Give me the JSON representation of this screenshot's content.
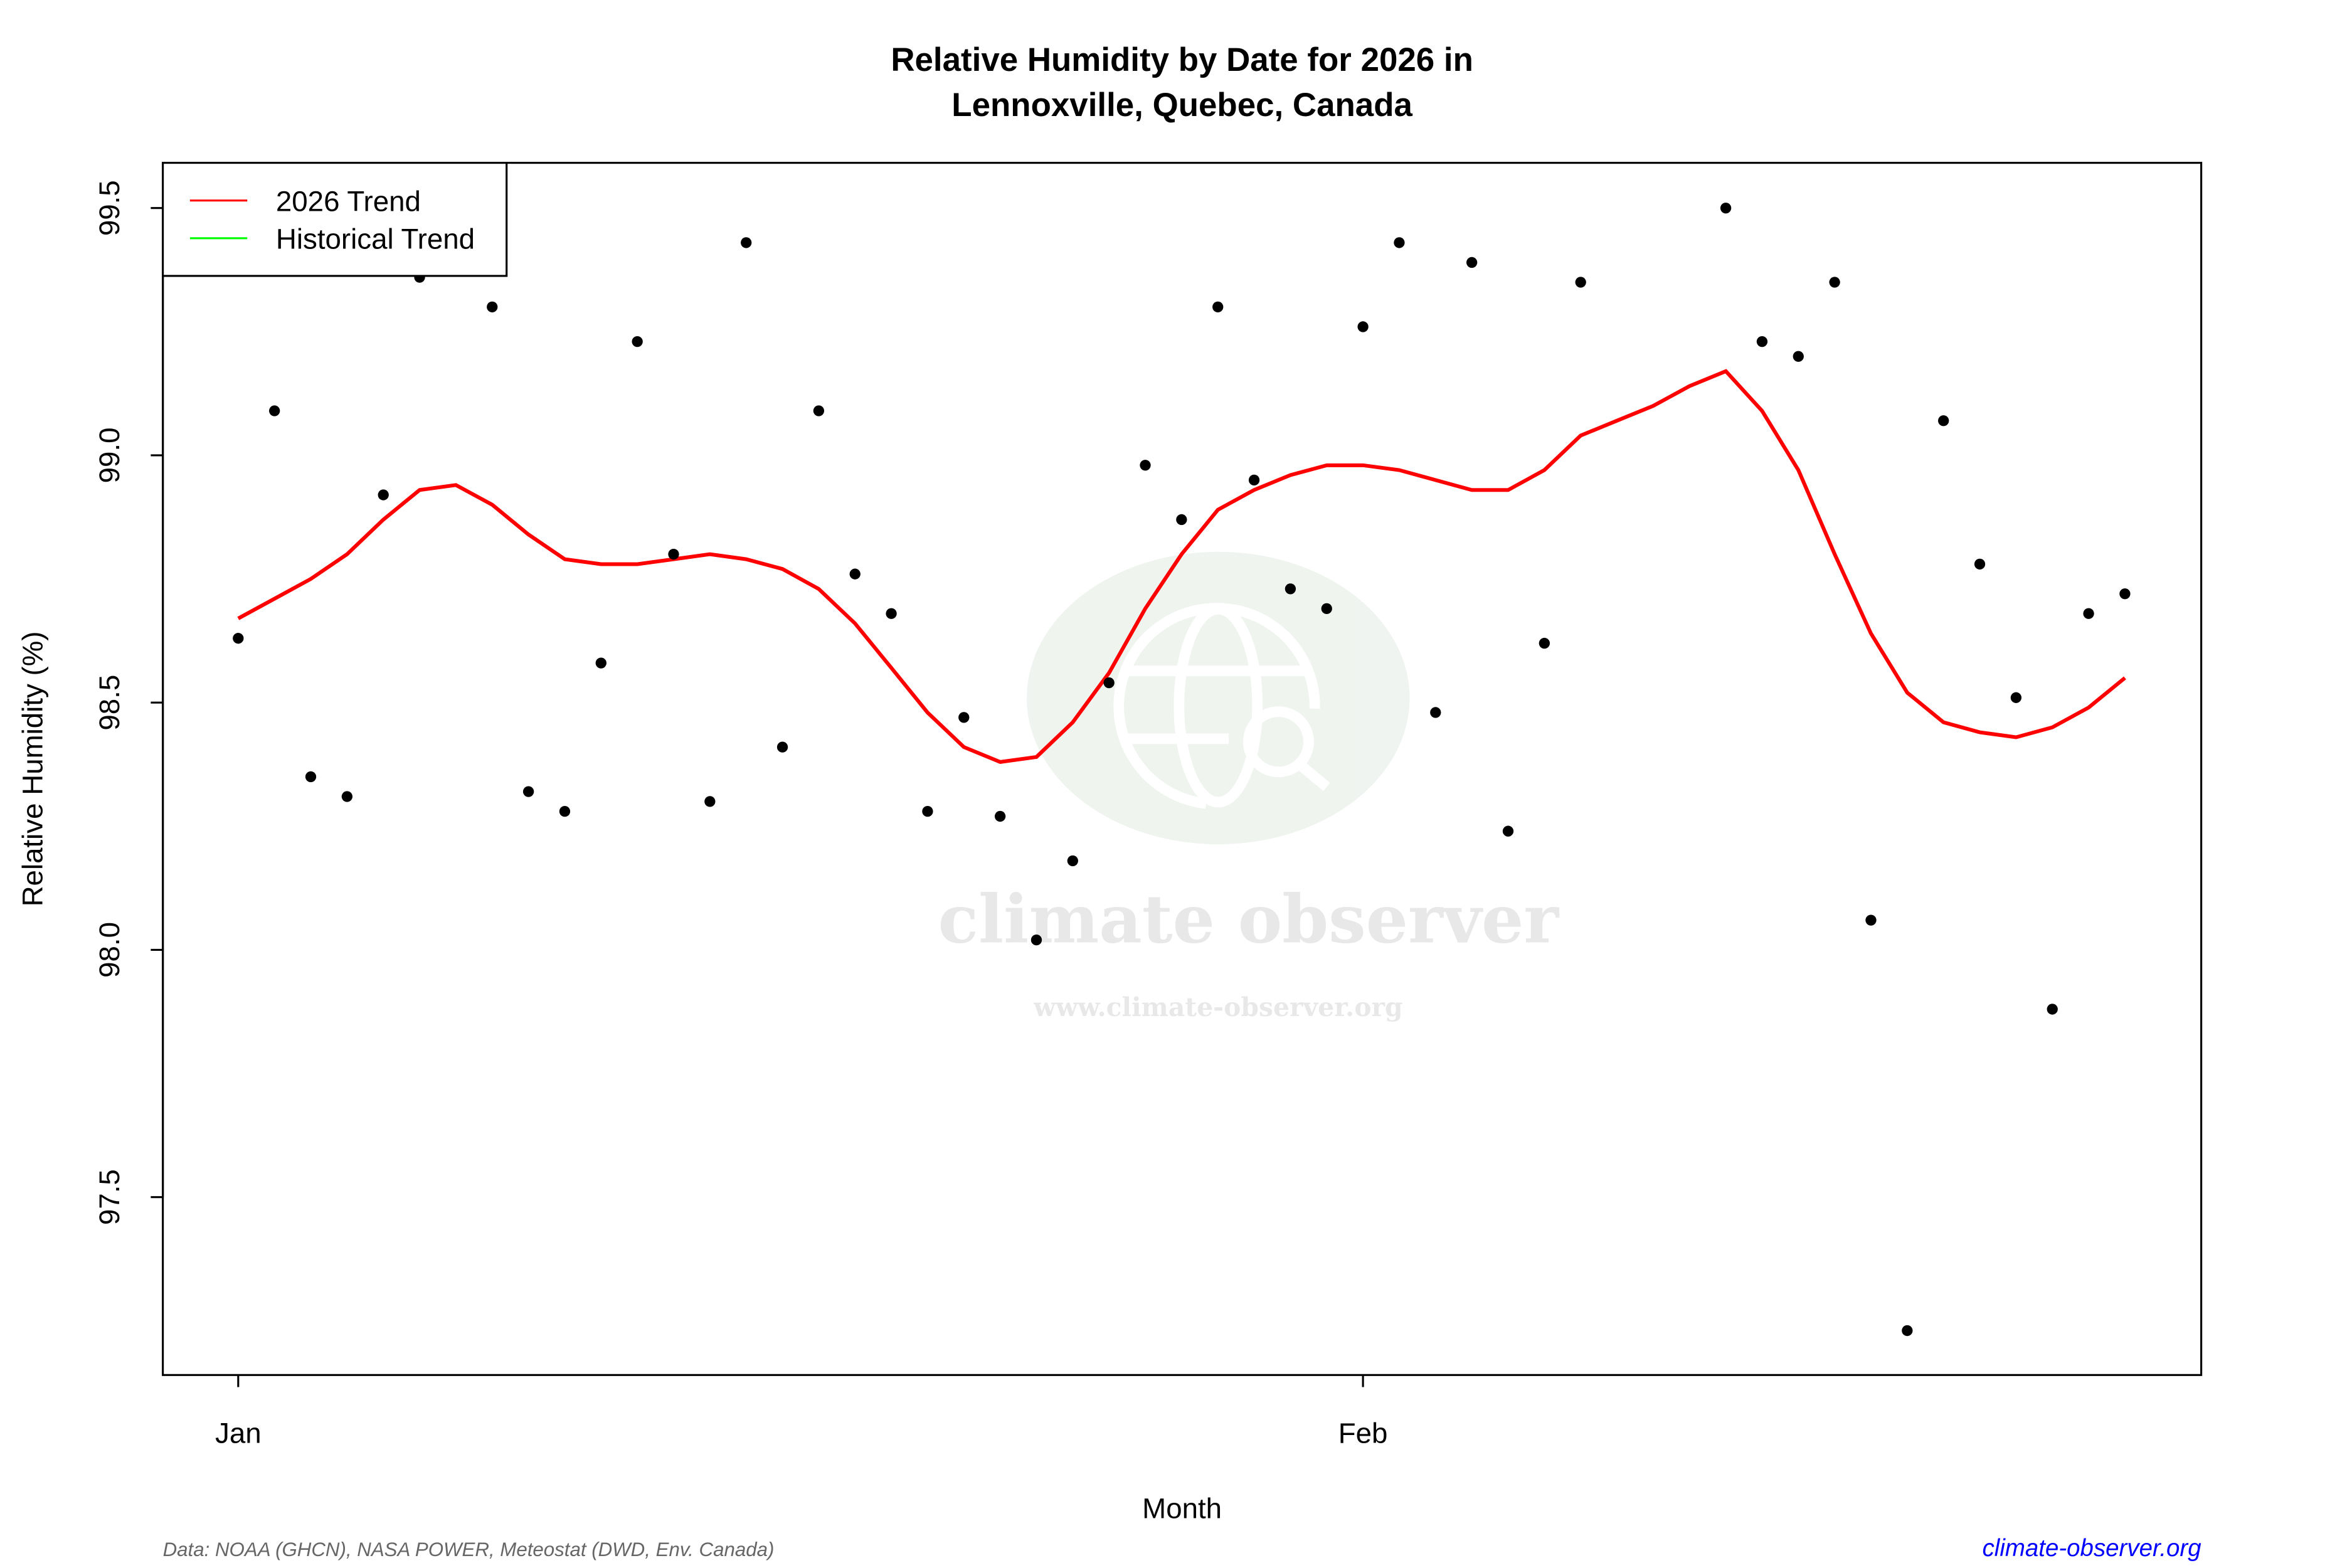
{
  "chart_data": {
    "type": "scatter+line",
    "title_line1": "Relative Humidity by Date for 2026 in",
    "title_line2": "Lennoxville, Quebec, Canada",
    "xlabel": "Month",
    "ylabel": "Relative Humidity (%)",
    "ylim": [
      97.15,
      99.6
    ],
    "yticks": [
      97.5,
      98.0,
      98.5,
      99.0,
      99.5
    ],
    "ytick_labels": [
      "97.5",
      "98.0",
      "98.5",
      "99.0",
      "99.5"
    ],
    "xticks": [
      {
        "date": "2026-01-01",
        "label": "Jan"
      },
      {
        "date": "2026-02-01",
        "label": "Feb"
      }
    ],
    "grid": false,
    "legend": {
      "placement": "top-left",
      "entries": [
        {
          "label": "2026 Trend",
          "color": "#ff0000"
        },
        {
          "label": "Historical Trend",
          "color": "#00ff00"
        }
      ]
    },
    "points": {
      "color": "#000000",
      "data": [
        [
          "2026-01-01",
          98.63
        ],
        [
          "2026-01-02",
          99.09
        ],
        [
          "2026-01-03",
          98.35
        ],
        [
          "2026-01-04",
          98.31
        ],
        [
          "2026-01-05",
          98.92
        ],
        [
          "2026-01-06",
          99.36
        ],
        [
          "2026-01-08",
          99.3
        ],
        [
          "2026-01-09",
          98.32
        ],
        [
          "2026-01-10",
          98.28
        ],
        [
          "2026-01-11",
          98.58
        ],
        [
          "2026-01-12",
          99.23
        ],
        [
          "2026-01-13",
          98.8
        ],
        [
          "2026-01-14",
          98.3
        ],
        [
          "2026-01-15",
          99.43
        ],
        [
          "2026-01-16",
          98.41
        ],
        [
          "2026-01-17",
          99.09
        ],
        [
          "2026-01-18",
          98.76
        ],
        [
          "2026-01-19",
          98.68
        ],
        [
          "2026-01-20",
          98.28
        ],
        [
          "2026-01-21",
          98.47
        ],
        [
          "2026-01-22",
          98.27
        ],
        [
          "2026-01-23",
          98.02
        ],
        [
          "2026-01-24",
          98.18
        ],
        [
          "2026-01-25",
          98.54
        ],
        [
          "2026-01-26",
          98.98
        ],
        [
          "2026-01-27",
          98.87
        ],
        [
          "2026-01-28",
          99.3
        ],
        [
          "2026-01-29",
          98.95
        ],
        [
          "2026-01-30",
          98.73
        ],
        [
          "2026-01-31",
          98.69
        ],
        [
          "2026-02-01",
          99.26
        ],
        [
          "2026-02-02",
          99.43
        ],
        [
          "2026-02-03",
          98.48
        ],
        [
          "2026-02-04",
          99.39
        ],
        [
          "2026-02-05",
          98.24
        ],
        [
          "2026-02-06",
          98.62
        ],
        [
          "2026-02-07",
          99.35
        ],
        [
          "2026-02-11",
          99.5
        ],
        [
          "2026-02-12",
          99.23
        ],
        [
          "2026-02-13",
          99.2
        ],
        [
          "2026-02-14",
          99.35
        ],
        [
          "2026-02-15",
          98.06
        ],
        [
          "2026-02-16",
          97.23
        ],
        [
          "2026-02-17",
          99.07
        ],
        [
          "2026-02-18",
          98.78
        ],
        [
          "2026-02-19",
          98.51
        ],
        [
          "2026-02-20",
          97.88
        ],
        [
          "2026-02-21",
          98.68
        ],
        [
          "2026-02-22",
          98.72
        ]
      ]
    },
    "trend_2026": {
      "color": "#ff0000",
      "data": [
        [
          "2026-01-01",
          98.67
        ],
        [
          "2026-01-02",
          98.71
        ],
        [
          "2026-01-03",
          98.75
        ],
        [
          "2026-01-04",
          98.8
        ],
        [
          "2026-01-05",
          98.87
        ],
        [
          "2026-01-06",
          98.93
        ],
        [
          "2026-01-07",
          98.94
        ],
        [
          "2026-01-08",
          98.9
        ],
        [
          "2026-01-09",
          98.84
        ],
        [
          "2026-01-10",
          98.79
        ],
        [
          "2026-01-11",
          98.78
        ],
        [
          "2026-01-12",
          98.78
        ],
        [
          "2026-01-13",
          98.79
        ],
        [
          "2026-01-14",
          98.8
        ],
        [
          "2026-01-15",
          98.79
        ],
        [
          "2026-01-16",
          98.77
        ],
        [
          "2026-01-17",
          98.73
        ],
        [
          "2026-01-18",
          98.66
        ],
        [
          "2026-01-19",
          98.57
        ],
        [
          "2026-01-20",
          98.48
        ],
        [
          "2026-01-21",
          98.41
        ],
        [
          "2026-01-22",
          98.38
        ],
        [
          "2026-01-23",
          98.39
        ],
        [
          "2026-01-24",
          98.46
        ],
        [
          "2026-01-25",
          98.56
        ],
        [
          "2026-01-26",
          98.69
        ],
        [
          "2026-01-27",
          98.8
        ],
        [
          "2026-01-28",
          98.89
        ],
        [
          "2026-01-29",
          98.93
        ],
        [
          "2026-01-30",
          98.96
        ],
        [
          "2026-01-31",
          98.98
        ],
        [
          "2026-02-01",
          98.98
        ],
        [
          "2026-02-02",
          98.97
        ],
        [
          "2026-02-03",
          98.95
        ],
        [
          "2026-02-04",
          98.93
        ],
        [
          "2026-02-05",
          98.93
        ],
        [
          "2026-02-06",
          98.97
        ],
        [
          "2026-02-07",
          99.04
        ],
        [
          "2026-02-08",
          99.07
        ],
        [
          "2026-02-09",
          99.1
        ],
        [
          "2026-02-10",
          99.14
        ],
        [
          "2026-02-11",
          99.17
        ],
        [
          "2026-02-12",
          99.09
        ],
        [
          "2026-02-13",
          98.97
        ],
        [
          "2026-02-14",
          98.8
        ],
        [
          "2026-02-15",
          98.64
        ],
        [
          "2026-02-16",
          98.52
        ],
        [
          "2026-02-17",
          98.46
        ],
        [
          "2026-02-18",
          98.44
        ],
        [
          "2026-02-19",
          98.43
        ],
        [
          "2026-02-20",
          98.45
        ],
        [
          "2026-02-21",
          98.49
        ],
        [
          "2026-02-22",
          98.55
        ]
      ]
    }
  },
  "footer": {
    "source": "Data: NOAA (GHCN), NASA POWER, Meteostat (DWD, Env. Canada)",
    "site": "climate-observer.org",
    "site_color": "#0000ff"
  },
  "watermark": {
    "name": "climate observer",
    "url": "www.climate-observer.org"
  }
}
